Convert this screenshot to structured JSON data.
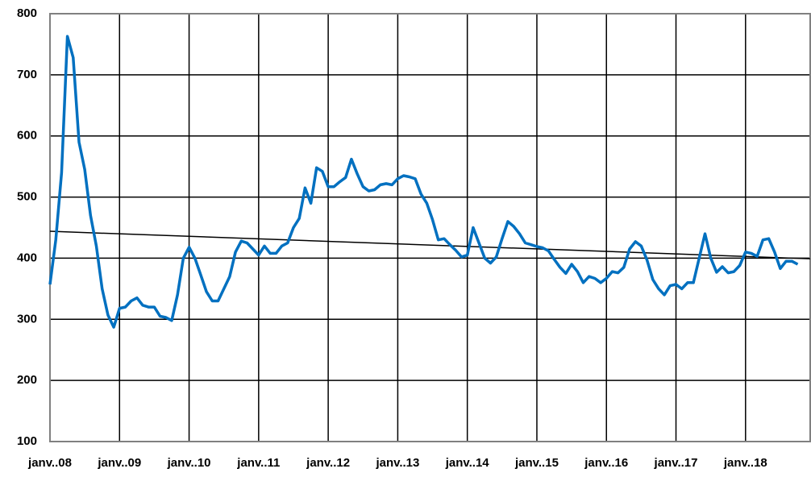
{
  "chart_data": {
    "type": "line",
    "categories": [
      "janv..08",
      null,
      null,
      null,
      null,
      null,
      null,
      null,
      null,
      null,
      null,
      null,
      "janv..09",
      null,
      null,
      null,
      null,
      null,
      null,
      null,
      null,
      null,
      null,
      null,
      "janv..10",
      null,
      null,
      null,
      null,
      null,
      null,
      null,
      null,
      null,
      null,
      null,
      "janv..11",
      null,
      null,
      null,
      null,
      null,
      null,
      null,
      null,
      null,
      null,
      null,
      "janv..12",
      null,
      null,
      null,
      null,
      null,
      null,
      null,
      null,
      null,
      null,
      null,
      "janv..13",
      null,
      null,
      null,
      null,
      null,
      null,
      null,
      null,
      null,
      null,
      null,
      "janv..14",
      null,
      null,
      null,
      null,
      null,
      null,
      null,
      null,
      null,
      null,
      null,
      "janv..15",
      null,
      null,
      null,
      null,
      null,
      null,
      null,
      null,
      null,
      null,
      null,
      "janv..16",
      null,
      null,
      null,
      null,
      null,
      null,
      null,
      null,
      null,
      null,
      null,
      "janv..17",
      null,
      null,
      null,
      null,
      null,
      null,
      null,
      null,
      null,
      null,
      null,
      "janv..18",
      null,
      null,
      null,
      null,
      null,
      null,
      null,
      null,
      null
    ],
    "series": [
      {
        "color": "#0070c0",
        "values": [
          357,
          430,
          540,
          763,
          728,
          590,
          545,
          470,
          420,
          350,
          307,
          287,
          318,
          320,
          330,
          335,
          323,
          320,
          320,
          305,
          303,
          298,
          340,
          400,
          418,
          400,
          373,
          345,
          330,
          330,
          350,
          370,
          410,
          428,
          425,
          415,
          405,
          420,
          408,
          408,
          420,
          425,
          450,
          465,
          515,
          490,
          548,
          542,
          517,
          517,
          525,
          532,
          562,
          538,
          517,
          510,
          512,
          520,
          522,
          520,
          530,
          535,
          533,
          530,
          505,
          490,
          463,
          430,
          432,
          422,
          413,
          402,
          405,
          450,
          425,
          400,
          392,
          402,
          432,
          460,
          452,
          440,
          425,
          422,
          419,
          417,
          412,
          398,
          385,
          375,
          390,
          378,
          360,
          370,
          367,
          360,
          367,
          378,
          376,
          385,
          415,
          427,
          420,
          397,
          365,
          350,
          340,
          355,
          357,
          350,
          360,
          360,
          400,
          440,
          400,
          377,
          386,
          376,
          378,
          388,
          410,
          408,
          403,
          430,
          432,
          410,
          383,
          395,
          395,
          390
        ]
      }
    ],
    "trendline": {
      "color": "#000000",
      "start": 444,
      "end": 399
    },
    "ylim": [
      100,
      800
    ],
    "yticks": [
      100,
      200,
      300,
      400,
      500,
      600,
      700,
      800
    ],
    "grid": true
  }
}
